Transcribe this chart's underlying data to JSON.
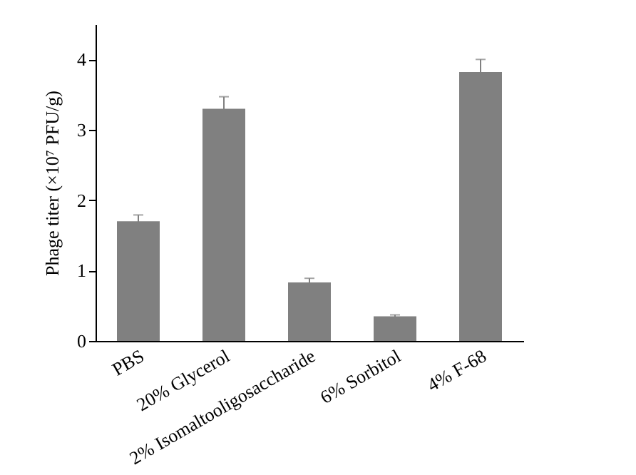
{
  "chart_data": {
    "type": "bar",
    "ylabel": "Phage titer (×10⁷ PFU/g)",
    "categories": [
      "PBS",
      "20% Glycerol",
      "2% Isomaltooligosaccharide",
      "6% Sorbitol",
      "4% F-68"
    ],
    "values": [
      1.7,
      3.3,
      0.83,
      0.35,
      3.82
    ],
    "errors": [
      0.09,
      0.17,
      0.06,
      0.02,
      0.18
    ],
    "color": "#808080",
    "ylim": [
      0,
      4.5
    ],
    "yticks": [
      0,
      1,
      2,
      3,
      4
    ],
    "grid": false
  }
}
